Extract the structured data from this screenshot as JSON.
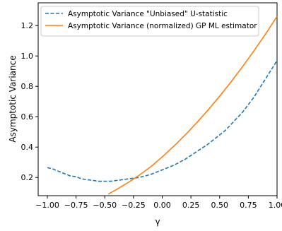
{
  "chart_data": {
    "type": "line",
    "title": "",
    "xlabel": "γ",
    "ylabel": "Asymptotic Variance",
    "xlim": [
      -1.08,
      1.0
    ],
    "ylim": [
      0.08,
      1.35
    ],
    "xticks": [
      "−1.00",
      "−0.75",
      "−0.50",
      "−0.25",
      "0.00",
      "0.25",
      "0.50",
      "0.75",
      "1.00"
    ],
    "xtick_values": [
      -1.0,
      -0.75,
      -0.5,
      -0.25,
      0.0,
      0.25,
      0.5,
      0.75,
      1.0
    ],
    "yticks": [
      "0.2",
      "0.4",
      "0.6",
      "0.8",
      "1.0",
      "1.2"
    ],
    "ytick_values": [
      0.2,
      0.4,
      0.6,
      0.8,
      1.0,
      1.2
    ],
    "grid": false,
    "legend_position": "top-left",
    "series": [
      {
        "name": "Asymptotic Variance \"Unbiased\" U-statistic",
        "color": "#1f77b4",
        "style": "dashed",
        "x": [
          -1.0,
          -0.95,
          -0.9,
          -0.85,
          -0.8,
          -0.75,
          -0.7,
          -0.65,
          -0.6,
          -0.55,
          -0.5,
          -0.45,
          -0.4,
          -0.35,
          -0.3,
          -0.25,
          -0.2,
          -0.15,
          -0.1,
          -0.05,
          0.0,
          0.05,
          0.1,
          0.15,
          0.2,
          0.25,
          0.3,
          0.35,
          0.4,
          0.45,
          0.5,
          0.55,
          0.6,
          0.65,
          0.7,
          0.75,
          0.8,
          0.85,
          0.9,
          0.95,
          1.0
        ],
        "y": [
          0.265,
          0.255,
          0.24,
          0.225,
          0.21,
          0.205,
          0.19,
          0.185,
          0.18,
          0.175,
          0.175,
          0.175,
          0.18,
          0.185,
          0.19,
          0.195,
          0.2,
          0.21,
          0.22,
          0.235,
          0.25,
          0.265,
          0.28,
          0.3,
          0.32,
          0.345,
          0.37,
          0.395,
          0.42,
          0.45,
          0.48,
          0.51,
          0.55,
          0.59,
          0.63,
          0.68,
          0.73,
          0.79,
          0.85,
          0.91,
          0.97
        ]
      },
      {
        "name": "Asymptotic Variance (normalized) GP ML estimator",
        "color": "#ff7f0e",
        "style": "solid",
        "x": [
          -0.47,
          -0.4,
          -0.3,
          -0.2,
          -0.1,
          0.0,
          0.1,
          0.2,
          0.3,
          0.4,
          0.5,
          0.6,
          0.7,
          0.8,
          0.9,
          1.0
        ],
        "y": [
          0.09,
          0.12,
          0.165,
          0.215,
          0.27,
          0.335,
          0.405,
          0.48,
          0.56,
          0.645,
          0.735,
          0.83,
          0.93,
          1.035,
          1.145,
          1.26
        ]
      }
    ]
  }
}
